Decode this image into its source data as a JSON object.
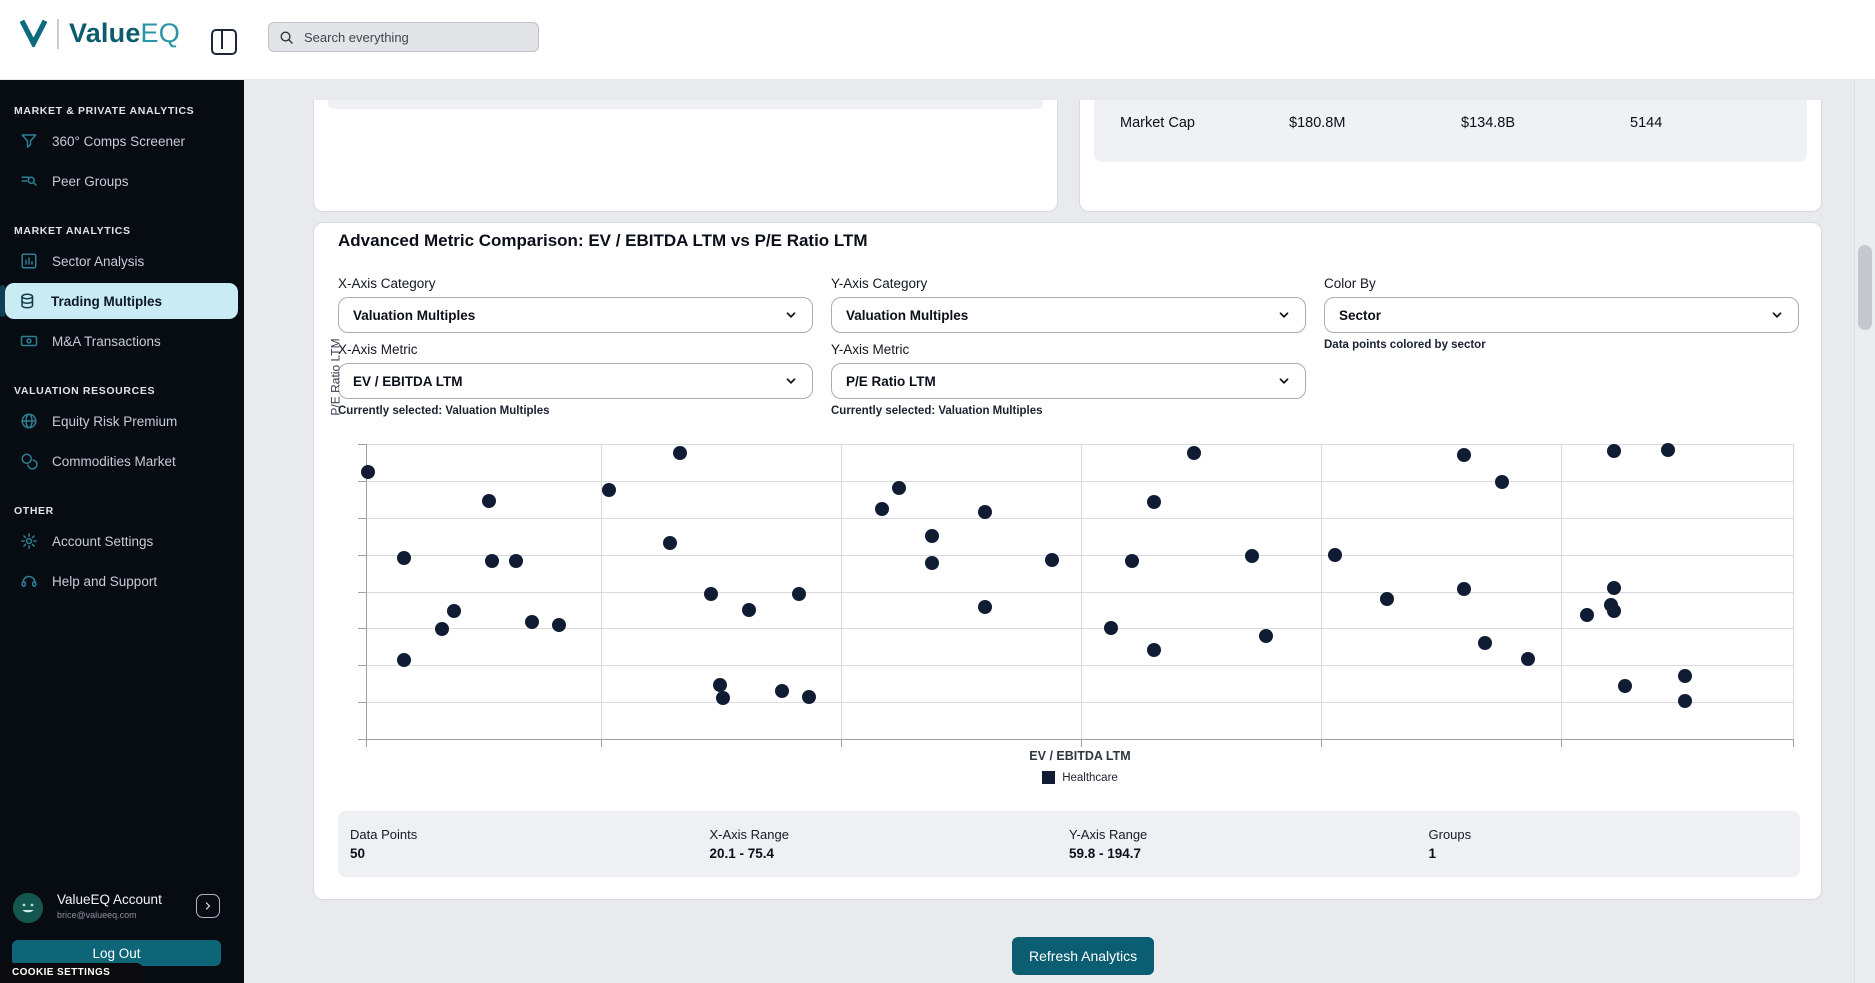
{
  "header": {
    "brand_bold": "Value",
    "brand_light": "EQ",
    "search_placeholder": "Search everything"
  },
  "sidebar": {
    "sections": [
      {
        "label": "MARKET & PRIVATE ANALYTICS",
        "items": [
          {
            "label": "360° Comps Screener",
            "icon": "funnel-icon"
          },
          {
            "label": "Peer Groups",
            "icon": "list-search-icon"
          }
        ]
      },
      {
        "label": "MARKET ANALYTICS",
        "items": [
          {
            "label": "Sector Analysis",
            "icon": "bar-chart-icon"
          },
          {
            "label": "Trading Multiples",
            "icon": "coins-icon",
            "active": true
          },
          {
            "label": "M&A Transactions",
            "icon": "banknote-icon"
          }
        ]
      },
      {
        "label": "VALUATION RESOURCES",
        "items": [
          {
            "label": "Equity Risk Premium",
            "icon": "globe-icon"
          },
          {
            "label": "Commodities Market",
            "icon": "coins-pair-icon"
          }
        ]
      },
      {
        "label": "OTHER",
        "items": [
          {
            "label": "Account Settings",
            "icon": "gear-icon"
          },
          {
            "label": "Help and Support",
            "icon": "headset-icon"
          }
        ]
      }
    ],
    "account": {
      "name": "ValueEQ Account",
      "email": "brice@valueeq.com"
    },
    "logout_label": "Log Out",
    "cookie_label": "COOKIE SETTINGS"
  },
  "topcards": {
    "market_cap_row": {
      "label": "Market Cap",
      "values": [
        "$180.8M",
        "$134.8B",
        "5144"
      ]
    }
  },
  "analytics": {
    "title": "Advanced Metric Comparison: EV / EBITDA LTM vs P/E Ratio LTM",
    "controls": [
      {
        "label": "X-Axis Category",
        "value": "Valuation Multiples",
        "helper": ""
      },
      {
        "label": "Y-Axis Category",
        "value": "Valuation Multiples",
        "helper": ""
      },
      {
        "label": "Color By",
        "value": "Sector",
        "helper": "Data points colored by sector"
      },
      {
        "label": "X-Axis Metric",
        "value": "EV / EBITDA LTM",
        "helper": "Currently selected: Valuation Multiples"
      },
      {
        "label": "Y-Axis Metric",
        "value": "P/E Ratio LTM",
        "helper": "Currently selected: Valuation Multiples"
      }
    ],
    "stats": [
      {
        "label": "Data Points",
        "value": "50"
      },
      {
        "label": "X-Axis Range",
        "value": "20.1 - 75.4"
      },
      {
        "label": "Y-Axis Range",
        "value": "59.8 - 194.7"
      },
      {
        "label": "Groups",
        "value": "1"
      }
    ],
    "refresh_label": "Refresh Analytics"
  },
  "chart_data": {
    "type": "scatter",
    "title": "",
    "xlabel": "EV / EBITDA LTM",
    "ylabel": "P/E Ratio LTM",
    "xlim": [
      20.1,
      75.4
    ],
    "ylim": [
      59.8,
      194.7
    ],
    "grid": true,
    "legend_position": "bottom-center",
    "legend": [
      {
        "label": "Healthcare",
        "color": "#101c33"
      }
    ],
    "series": [
      {
        "name": "Healthcare",
        "color": "#101c33",
        "points": [
          [
            20.1,
            182.9
          ],
          [
            25.2,
            167.3
          ],
          [
            21.6,
            136.7
          ],
          [
            25.3,
            135.1
          ],
          [
            26.3,
            135.1
          ],
          [
            23.7,
            108.2
          ],
          [
            23.2,
            98.5
          ],
          [
            27.0,
            102.3
          ],
          [
            28.1,
            100.7
          ],
          [
            21.6,
            81.8
          ],
          [
            30.2,
            173.2
          ],
          [
            33.2,
            193.1
          ],
          [
            32.8,
            144.7
          ],
          [
            34.5,
            117.3
          ],
          [
            36.1,
            108.7
          ],
          [
            34.9,
            68.4
          ],
          [
            35.0,
            61.4
          ],
          [
            37.5,
            65.2
          ],
          [
            38.6,
            61.9
          ],
          [
            38.2,
            117.3
          ],
          [
            41.7,
            163.0
          ],
          [
            42.4,
            174.3
          ],
          [
            43.8,
            148.5
          ],
          [
            43.8,
            134.0
          ],
          [
            46.0,
            161.4
          ],
          [
            46.0,
            110.3
          ],
          [
            48.8,
            135.6
          ],
          [
            51.3,
            99.0
          ],
          [
            52.2,
            135.1
          ],
          [
            53.1,
            166.8
          ],
          [
            53.1,
            87.2
          ],
          [
            54.8,
            193.1
          ],
          [
            57.2,
            137.7
          ],
          [
            57.8,
            94.7
          ],
          [
            60.7,
            138.3
          ],
          [
            62.9,
            114.6
          ],
          [
            66.1,
            120.0
          ],
          [
            66.1,
            192.0
          ],
          [
            67.7,
            177.5
          ],
          [
            67.0,
            91.0
          ],
          [
            68.8,
            82.4
          ],
          [
            71.3,
            106.0
          ],
          [
            72.4,
            120.5
          ],
          [
            72.3,
            111.4
          ],
          [
            72.4,
            108.2
          ],
          [
            72.4,
            194.2
          ],
          [
            74.7,
            194.7
          ],
          [
            72.9,
            67.9
          ],
          [
            75.4,
            73.2
          ],
          [
            75.4,
            59.8
          ]
        ]
      }
    ]
  },
  "colors": {
    "accent_teal": "#0d6b7d",
    "active_item_bg": "#c9ebf3",
    "dot_navy": "#101c33",
    "refresh_button": "#0b5e72",
    "logout_button": "#0e6578",
    "sidebar_bg": "#070b12"
  }
}
